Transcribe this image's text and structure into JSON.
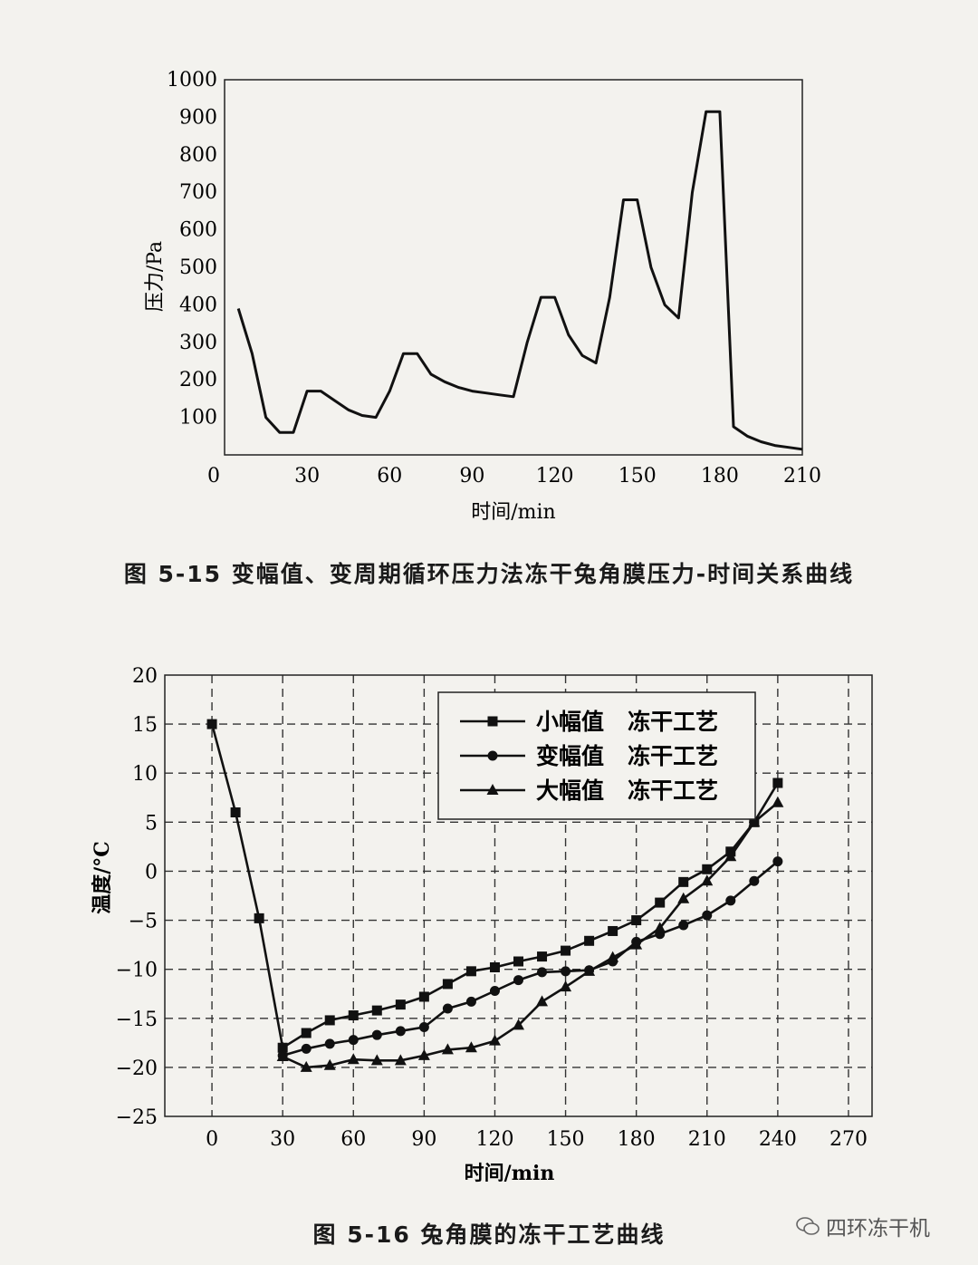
{
  "chart_data": [
    {
      "type": "line",
      "caption": "图 5-15   变幅值、变周期循环压力法冻干兔角膜压力-时间关系曲线",
      "xlabel": "时间/min",
      "ylabel": "压力/Pa",
      "xlim": [
        0,
        210
      ],
      "ylim": [
        0,
        1000
      ],
      "xticks": [
        0,
        30,
        60,
        90,
        120,
        150,
        180,
        210
      ],
      "yticks": [
        100,
        200,
        300,
        400,
        500,
        600,
        700,
        800,
        900,
        1000
      ],
      "grid": false,
      "series": [
        {
          "x": [
            5,
            10,
            15,
            20,
            25,
            30,
            35,
            40,
            45,
            50,
            55,
            60,
            65,
            70,
            75,
            80,
            85,
            90,
            95,
            100,
            105,
            110,
            115,
            120,
            125,
            130,
            135,
            140,
            145,
            150,
            155,
            160,
            165,
            170,
            175,
            180,
            185,
            190,
            195,
            200,
            205,
            210
          ],
          "y": [
            390,
            270,
            100,
            60,
            60,
            170,
            170,
            145,
            120,
            105,
            100,
            170,
            270,
            270,
            215,
            195,
            180,
            170,
            165,
            160,
            155,
            300,
            420,
            420,
            320,
            265,
            245,
            420,
            680,
            680,
            500,
            400,
            365,
            700,
            915,
            915,
            75,
            50,
            35,
            25,
            20,
            15
          ]
        }
      ]
    },
    {
      "type": "line",
      "caption": "图 5-16   兔角膜的冻干工艺曲线",
      "xlabel": "时间/min",
      "ylabel": "温度/°C",
      "xlim": [
        -20,
        280
      ],
      "ylim": [
        -25,
        20
      ],
      "xticks": [
        0,
        30,
        60,
        90,
        120,
        150,
        180,
        210,
        240,
        270
      ],
      "yticks": [
        -25,
        -20,
        -15,
        -10,
        -5,
        0,
        5,
        10,
        15,
        20
      ],
      "grid": true,
      "legend": "top-right",
      "series": [
        {
          "name": "小幅值   冻干工艺",
          "marker": "square",
          "x": [
            0,
            10,
            20,
            30,
            40,
            50,
            60,
            70,
            80,
            90,
            100,
            110,
            120,
            130,
            140,
            150,
            160,
            170,
            180,
            190,
            200,
            210,
            220,
            230,
            240
          ],
          "y": [
            15,
            6,
            -4.8,
            -18,
            -16.5,
            -15.2,
            -14.7,
            -14.2,
            -13.6,
            -12.8,
            -11.5,
            -10.2,
            -9.8,
            -9.2,
            -8.7,
            -8.1,
            -7.1,
            -6.1,
            -5,
            -3.2,
            -1.1,
            0.2,
            2,
            5,
            9
          ]
        },
        {
          "name": "变幅值   冻干工艺",
          "marker": "circle",
          "x": [
            30,
            40,
            50,
            60,
            70,
            80,
            90,
            100,
            110,
            120,
            130,
            140,
            150,
            160,
            170,
            180,
            190,
            200,
            210,
            220,
            230,
            240
          ],
          "y": [
            -18.8,
            -18.1,
            -17.6,
            -17.2,
            -16.7,
            -16.3,
            -15.9,
            -14,
            -13.3,
            -12.2,
            -11.1,
            -10.3,
            -10.2,
            -10.1,
            -9.2,
            -7.2,
            -6.4,
            -5.5,
            -4.5,
            -3,
            -1,
            1
          ]
        },
        {
          "name": "大幅值   冻干工艺",
          "marker": "triangle",
          "x": [
            30,
            40,
            50,
            60,
            70,
            80,
            90,
            100,
            110,
            120,
            130,
            140,
            150,
            160,
            170,
            180,
            190,
            200,
            210,
            220,
            230,
            240
          ],
          "y": [
            -18.9,
            -20,
            -19.8,
            -19.2,
            -19.3,
            -19.3,
            -18.8,
            -18.2,
            -18,
            -17.3,
            -15.7,
            -13.3,
            -11.8,
            -10.2,
            -8.8,
            -7.5,
            -5.8,
            -2.8,
            -1,
            1.5,
            5,
            7
          ]
        }
      ]
    }
  ],
  "watermark": "四环冻干机"
}
